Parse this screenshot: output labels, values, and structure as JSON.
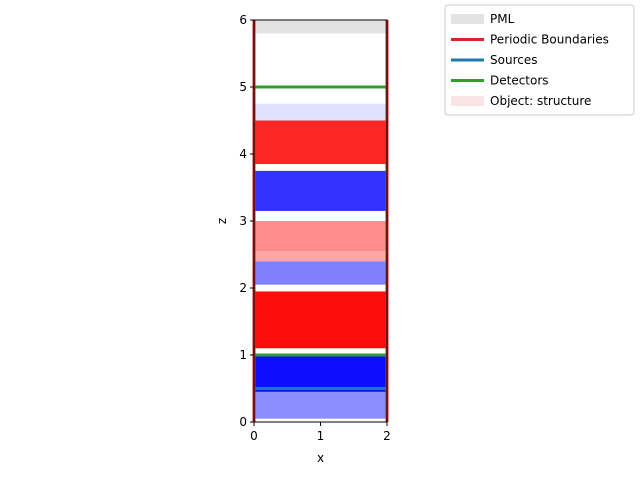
{
  "chart_data": {
    "type": "heatmap",
    "title": "",
    "xlabel": "x",
    "ylabel": "z",
    "xlim": [
      0,
      2
    ],
    "ylim": [
      0,
      6
    ],
    "xticks": [
      "0",
      "1",
      "2"
    ],
    "yticks": [
      "0",
      "1",
      "2",
      "3",
      "4",
      "5",
      "6"
    ],
    "grid": false,
    "legend_position": "outside-top-right",
    "field_bands": [
      {
        "z": [
          0.05,
          0.45
        ],
        "sign": "negative",
        "strength": 0.45
      },
      {
        "z": [
          0.45,
          1.0
        ],
        "sign": "negative",
        "strength": 0.95
      },
      {
        "z": [
          1.0,
          1.1
        ],
        "sign": "neutral",
        "strength": 0.1
      },
      {
        "z": [
          1.1,
          1.95
        ],
        "sign": "positive",
        "strength": 0.95
      },
      {
        "z": [
          1.95,
          2.05
        ],
        "sign": "neutral",
        "strength": 0.05
      },
      {
        "z": [
          2.05,
          2.4
        ],
        "sign": "negative",
        "strength": 0.5
      },
      {
        "z": [
          2.4,
          2.55
        ],
        "sign": "positive",
        "strength": 0.35
      },
      {
        "z": [
          2.55,
          3.0
        ],
        "sign": "positive",
        "strength": 0.45
      },
      {
        "z": [
          3.0,
          3.15
        ],
        "sign": "neutral",
        "strength": 0.05
      },
      {
        "z": [
          3.15,
          3.75
        ],
        "sign": "negative",
        "strength": 0.8
      },
      {
        "z": [
          3.75,
          3.85
        ],
        "sign": "neutral",
        "strength": 0.05
      },
      {
        "z": [
          3.85,
          4.5
        ],
        "sign": "positive",
        "strength": 0.85
      },
      {
        "z": [
          4.5,
          4.75
        ],
        "sign": "negative",
        "strength": 0.12
      }
    ],
    "pml": {
      "z": [
        5.8,
        6.0
      ],
      "color": "#e3e3e3"
    },
    "periodic_boundaries": {
      "x": [
        0,
        2
      ],
      "color": "#d62728"
    },
    "sources": [
      {
        "z": 0.5
      }
    ],
    "detectors": [
      {
        "z": 1.0
      },
      {
        "z": 5.0
      }
    ],
    "legend": [
      {
        "label": "PML",
        "color": "#e3e3e3",
        "style": "band"
      },
      {
        "label": "Periodic Boundaries",
        "color": "#d62728",
        "style": "line"
      },
      {
        "label": "Sources",
        "color": "#1f77b4",
        "style": "line"
      },
      {
        "label": "Detectors",
        "color": "#2ca02c",
        "style": "line"
      },
      {
        "label": "Object: structure",
        "color": "#fbe4e4",
        "style": "band"
      }
    ]
  }
}
